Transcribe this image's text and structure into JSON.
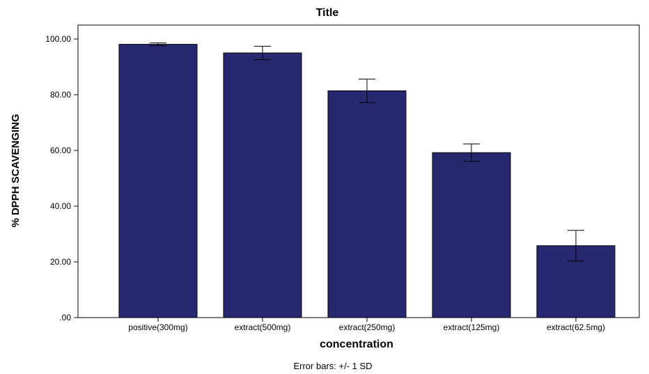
{
  "chart_data": {
    "type": "bar",
    "title": "Title",
    "xlabel": "concentration",
    "ylabel": "% DPPH SCAVENGING",
    "categories": [
      "positive(300mg)",
      "extract(500mg)",
      "extract(250mg)",
      "extract(125mg)",
      "extract(62.5mg)"
    ],
    "values": [
      98.1,
      95.0,
      81.4,
      59.2,
      25.8
    ],
    "error_low": [
      97.6,
      92.6,
      77.2,
      56.1,
      20.3
    ],
    "error_high": [
      98.6,
      97.4,
      85.6,
      62.3,
      31.3
    ],
    "ylim": [
      0,
      100
    ],
    "yticks": [
      0,
      20,
      40,
      60,
      80,
      100
    ],
    "ytick_labels": [
      ".00",
      "20.00",
      "40.00",
      "60.00",
      "80.00",
      "100.00"
    ],
    "grid": false,
    "bar_color": "#262870",
    "note": "Error bars: +/- 1 SD"
  }
}
